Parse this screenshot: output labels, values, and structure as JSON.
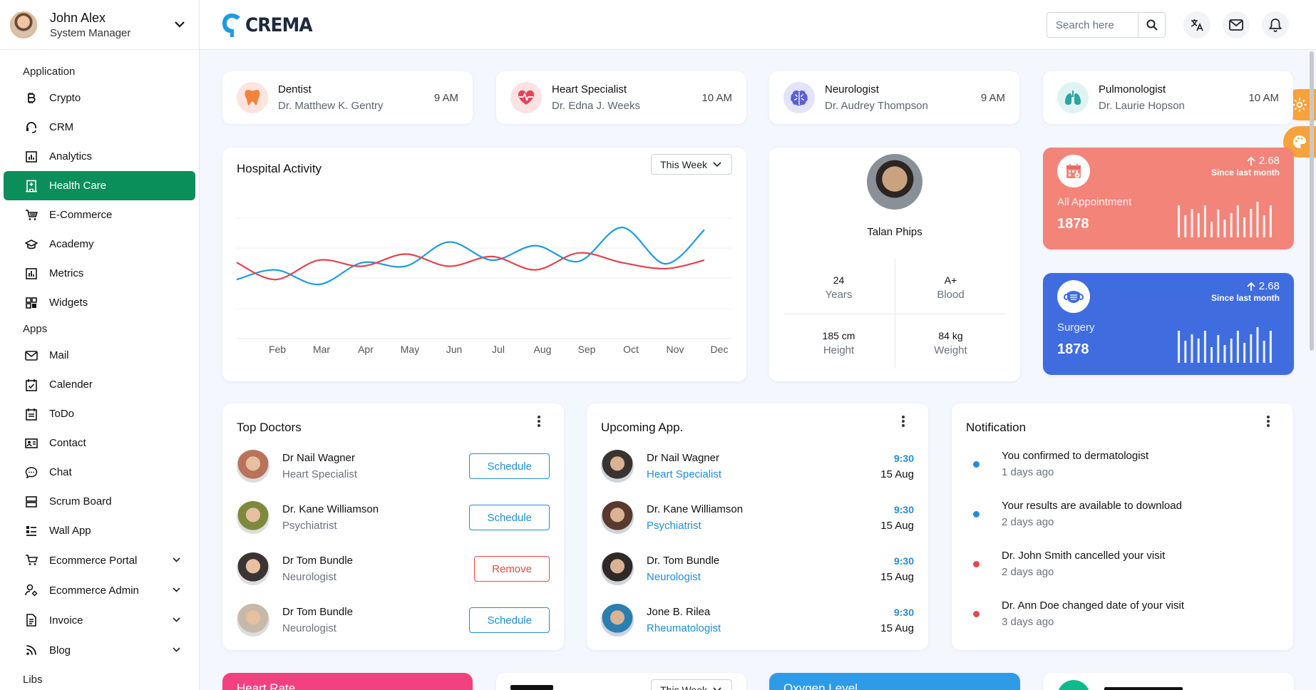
{
  "user": {
    "name": "John Alex",
    "role": "System Manager"
  },
  "brand": {
    "name": "CREMA"
  },
  "search": {
    "placeholder": "Search here"
  },
  "sidebar": {
    "groups": {
      "application": "Application",
      "apps": "Apps",
      "libs": "Libs"
    },
    "application_items": [
      {
        "label": "Crypto",
        "icon": "bitcoin-icon"
      },
      {
        "label": "CRM",
        "icon": "headset-icon"
      },
      {
        "label": "Analytics",
        "icon": "analytics-icon"
      },
      {
        "label": "Health Care",
        "icon": "hospital-icon",
        "active": true
      },
      {
        "label": "E-Commerce",
        "icon": "cart-icon"
      },
      {
        "label": "Academy",
        "icon": "graduation-icon"
      },
      {
        "label": "Metrics",
        "icon": "metrics-icon"
      },
      {
        "label": "Widgets",
        "icon": "widgets-icon"
      }
    ],
    "apps_items": [
      {
        "label": "Mail",
        "icon": "mail-icon"
      },
      {
        "label": "Calender",
        "icon": "calendar-check-icon"
      },
      {
        "label": "ToDo",
        "icon": "todo-icon"
      },
      {
        "label": "Contact",
        "icon": "contact-card-icon"
      },
      {
        "label": "Chat",
        "icon": "chat-icon"
      },
      {
        "label": "Scrum Board",
        "icon": "scrum-icon"
      },
      {
        "label": "Wall App",
        "icon": "wall-icon"
      },
      {
        "label": "Ecommerce Portal",
        "icon": "store-cart-icon",
        "expandable": true
      },
      {
        "label": "Ecommerce Admin",
        "icon": "admin-user-icon",
        "expandable": true
      },
      {
        "label": "Invoice",
        "icon": "invoice-icon",
        "expandable": true
      },
      {
        "label": "Blog",
        "icon": "rss-icon",
        "expandable": true
      }
    ]
  },
  "specialists": [
    {
      "title": "Dentist",
      "doctor": "Dr. Matthew K. Gentry",
      "time": "9 AM",
      "icon": "tooth-icon",
      "bg": "#fde4df",
      "color": "#f0843c"
    },
    {
      "title": "Heart Specialist",
      "doctor": "Dr. Edna J. Weeks",
      "time": "10 AM",
      "icon": "heart-pulse-icon",
      "bg": "#fde2e4",
      "color": "#e8425a"
    },
    {
      "title": "Neurologist",
      "doctor": "Dr. Audrey Thompson",
      "time": "9 AM",
      "icon": "brain-icon",
      "bg": "#e3e4fb",
      "color": "#5b5fd6"
    },
    {
      "title": "Pulmonologist",
      "doctor": "Dr. Laurie Hopson",
      "time": "10 AM",
      "icon": "lungs-icon",
      "bg": "#dff3f3",
      "color": "#2aa5a5"
    }
  ],
  "activity": {
    "title": "Hospital Activity",
    "period": "This Week",
    "chart_data": {
      "type": "line",
      "categories": [
        "Feb",
        "Mar",
        "Apr",
        "May",
        "Jun",
        "Jul",
        "Aug",
        "Sep",
        "Oct",
        "Nov",
        "Dec"
      ],
      "ylim": [
        0,
        100
      ],
      "grid": true,
      "series": [
        {
          "color": "#1e9be0",
          "values": [
            44,
            52,
            40,
            58,
            55,
            75,
            60,
            72,
            59,
            87,
            57,
            85
          ],
          "x": [
            0,
            0.9,
            1.9,
            2.9,
            3.9,
            4.9,
            5.9,
            6.9,
            7.9,
            8.9,
            9.9,
            10.8
          ]
        },
        {
          "color": "#e2454f",
          "values": [
            58,
            44,
            60,
            55,
            65,
            55,
            63,
            52,
            66,
            58,
            53,
            60
          ],
          "x": [
            0,
            0.9,
            1.9,
            2.9,
            3.9,
            4.9,
            5.9,
            6.9,
            7.9,
            8.9,
            9.9,
            10.8
          ]
        }
      ]
    }
  },
  "profile": {
    "name": "Talan Phips",
    "stats": [
      {
        "value": "24",
        "label": "Years"
      },
      {
        "value": "A+",
        "label": "Blood"
      },
      {
        "value": "185 cm",
        "label": "Height"
      },
      {
        "value": "84 kg",
        "label": "Weight"
      }
    ]
  },
  "kpis": [
    {
      "label": "All Appointment",
      "value": "1878",
      "change": "2.68",
      "since": "Since last month",
      "bg": "#f3847a",
      "icon": "calendar-icon",
      "bars": [
        0.8,
        0.55,
        0.72,
        0.6,
        0.8,
        0.4,
        0.7,
        0.45,
        0.6,
        0.8,
        0.5,
        0.72,
        0.9,
        0.55,
        0.8
      ]
    },
    {
      "label": "Surgery",
      "value": "1878",
      "change": "2.68",
      "since": "Since last month",
      "bg": "#3f6de0",
      "icon": "mask-icon",
      "bars": [
        0.8,
        0.55,
        0.72,
        0.6,
        0.8,
        0.4,
        0.7,
        0.45,
        0.6,
        0.8,
        0.5,
        0.72,
        0.9,
        0.55,
        0.8
      ]
    }
  ],
  "top_doctors": {
    "title": "Top Doctors",
    "items": [
      {
        "name": "Dr Nail Wagner",
        "spec": "Heart Specialist",
        "action": "Schedule",
        "kind": "blue",
        "avatar": "#b8735a"
      },
      {
        "name": "Dr. Kane Williamson",
        "spec": "Psychiatrist",
        "action": "Schedule",
        "kind": "blue",
        "avatar": "#7d8a3e"
      },
      {
        "name": "Dr Tom Bundle",
        "spec": "Neurologist",
        "action": "Remove",
        "kind": "red",
        "avatar": "#3b3434"
      },
      {
        "name": "Dr Tom Bundle",
        "spec": "Neurologist",
        "action": "Schedule",
        "kind": "blue",
        "avatar": "#c7b9a9"
      }
    ]
  },
  "upcoming": {
    "title": "Upcoming App.",
    "items": [
      {
        "name": "Dr Nail Wagner",
        "spec": "Heart Specialist",
        "time": "9:30",
        "date": "15 Aug",
        "avatar": "#3a3430"
      },
      {
        "name": "Dr. Kane Williamson",
        "spec": "Psychiatrist",
        "time": "9:30",
        "date": "15 Aug",
        "avatar": "#5a3a2e"
      },
      {
        "name": "Dr. Tom Bundle",
        "spec": "Neurologist",
        "time": "9:30",
        "date": "15 Aug",
        "avatar": "#2f2a28"
      },
      {
        "name": "Jone B. Rilea",
        "spec": "Rheumatologist",
        "time": "9:30",
        "date": "15 Aug",
        "avatar": "#2a7fb0"
      }
    ]
  },
  "notifications": {
    "title": "Notification",
    "items": [
      {
        "text": "You confirmed to dermatologist",
        "time": "1 days ago",
        "color": "#1f8ed8"
      },
      {
        "text": "Your results are available to download",
        "time": "2 days ago",
        "color": "#1f8ed8"
      },
      {
        "text": "Dr. John Smith cancelled your visit",
        "time": "2 days ago",
        "color": "#e5484d"
      },
      {
        "text": "Dr. Ann Doe changed date of your visit",
        "time": "3 days ago",
        "color": "#e5484d"
      }
    ]
  },
  "bottom": {
    "heart_rate": "Heart Rate",
    "period": "This Week",
    "oxygen": "Oxygen Level"
  }
}
